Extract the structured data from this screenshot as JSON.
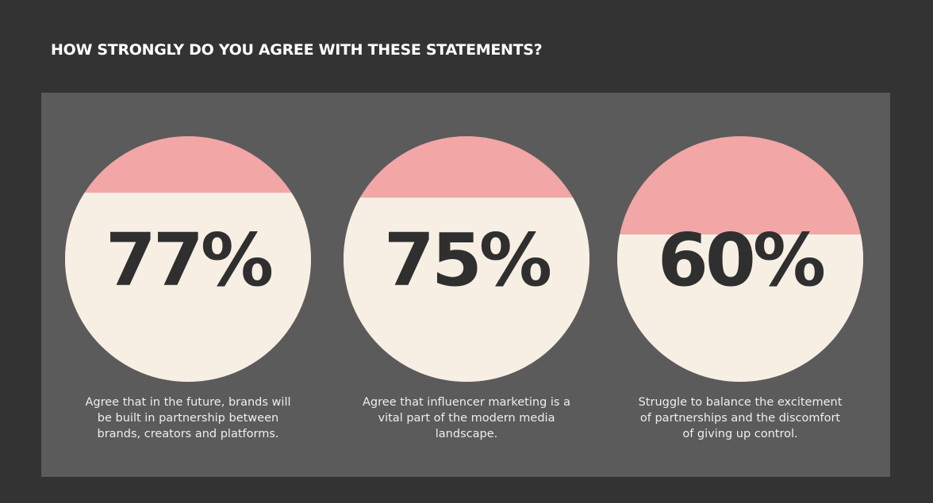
{
  "chart_data": {
    "type": "circle",
    "title": "HOW STRONGLY DO YOU AGREE WITH THESE STATEMENTS?",
    "categories": [
      "Agree that in the future, brands will be built in partnership between brands, creators and platforms.",
      "Agree that influencer marketing is a vital part of the modern media landscape.",
      "Struggle to balance the excitement of partnerships and the discomfort of giving up control."
    ],
    "values": [
      77,
      75,
      60
    ],
    "value_labels": [
      "77%",
      "75%",
      "60%"
    ],
    "color": "#f7efe3",
    "empty_color": "#f2a6a6"
  }
}
